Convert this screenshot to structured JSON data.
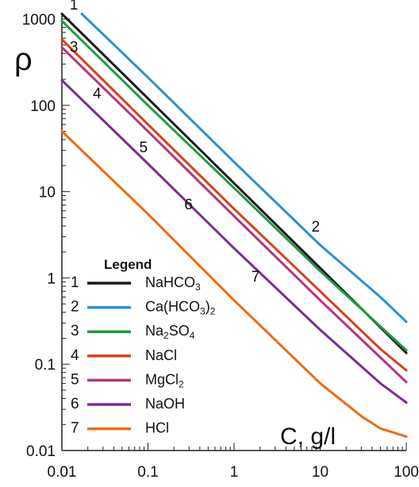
{
  "chart_data": {
    "type": "line",
    "title": "",
    "xlabel": "C, g/l",
    "ylabel": "ρ",
    "xscale": "log",
    "yscale": "log",
    "xlim": [
      0.01,
      100
    ],
    "ylim": [
      0.01,
      1000
    ],
    "xticks": [
      "0.01",
      "0.1",
      "1",
      "10",
      "100"
    ],
    "yticks": [
      "0.01",
      "0.1",
      "1",
      "10",
      "100",
      "1000"
    ],
    "grid": false,
    "legend": {
      "title": "Legend",
      "placement": "bottom-left",
      "items": [
        {
          "num": "1",
          "parts": [
            {
              "t": "NaHCO"
            },
            {
              "t": "3",
              "sub": true
            }
          ]
        },
        {
          "num": "2",
          "parts": [
            {
              "t": "Ca(HCO"
            },
            {
              "t": "3",
              "sub": true
            },
            {
              "t": ")"
            },
            {
              "t": "2",
              "sub": true
            }
          ]
        },
        {
          "num": "3",
          "parts": [
            {
              "t": "Na"
            },
            {
              "t": "2",
              "sub": true
            },
            {
              "t": "SO"
            },
            {
              "t": "4",
              "sub": true
            }
          ]
        },
        {
          "num": "4",
          "parts": [
            {
              "t": "NaCl"
            }
          ]
        },
        {
          "num": "5",
          "parts": [
            {
              "t": "MgCl"
            },
            {
              "t": "2",
              "sub": true
            }
          ]
        },
        {
          "num": "6",
          "parts": [
            {
              "t": "NaOH"
            }
          ]
        },
        {
          "num": "7",
          "parts": [
            {
              "t": "HCl"
            }
          ]
        }
      ]
    },
    "series": [
      {
        "name": "NaHCO3",
        "label": "1",
        "color": "#1a1a1a",
        "x": [
          0.01,
          0.1,
          1,
          10,
          100
        ],
        "y": [
          1150,
          120,
          12.5,
          1.3,
          0.135
        ]
      },
      {
        "name": "Ca(HCO3)2",
        "label": "2",
        "color": "#2b8fd8",
        "x": [
          0.017,
          0.1,
          1,
          10,
          50,
          100
        ],
        "y": [
          1150,
          210,
          22,
          2.4,
          0.6,
          0.31
        ]
      },
      {
        "name": "Na2SO4",
        "label": "3",
        "color": "#1f9a45",
        "x": [
          0.01,
          0.1,
          1,
          10,
          100
        ],
        "y": [
          950,
          100,
          11,
          1.2,
          0.145
        ]
      },
      {
        "name": "NaCl",
        "label": "4",
        "color": "#d8401c",
        "x": [
          0.01,
          0.1,
          1,
          10,
          50,
          100
        ],
        "y": [
          580,
          60,
          6.3,
          0.7,
          0.15,
          0.085
        ]
      },
      {
        "name": "MgCl2",
        "label": "5",
        "color": "#b5357e",
        "x": [
          0.01,
          0.1,
          1,
          10,
          50,
          100
        ],
        "y": [
          470,
          50,
          5.2,
          0.55,
          0.12,
          0.062
        ]
      },
      {
        "name": "NaOH",
        "label": "6",
        "color": "#7b2d90",
        "x": [
          0.01,
          0.1,
          1,
          10,
          50,
          100
        ],
        "y": [
          195,
          21,
          2.2,
          0.25,
          0.06,
          0.036
        ]
      },
      {
        "name": "HCl",
        "label": "7",
        "color": "#ee6a14",
        "x": [
          0.01,
          0.1,
          1,
          10,
          30,
          50,
          100
        ],
        "y": [
          50,
          5.5,
          0.55,
          0.06,
          0.025,
          0.018,
          0.0145
        ]
      }
    ]
  }
}
